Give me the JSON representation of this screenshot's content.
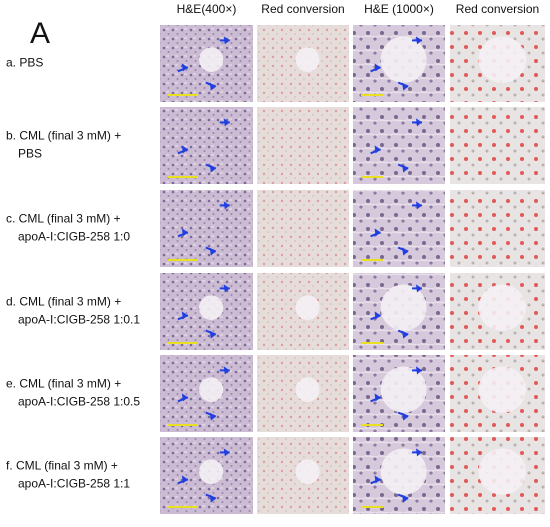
{
  "panel_label": "A",
  "columns": [
    "H&E(400×)",
    "Red conversion",
    "H&E (1000×)",
    "Red conversion"
  ],
  "rows": [
    {
      "lines": [
        "a. PBS"
      ]
    },
    {
      "lines": [
        "b. CML (final 3 mM) +",
        "PBS"
      ]
    },
    {
      "lines": [
        "c. CML (final 3 mM)  +",
        "apoA-I:CIGB-258  1:0"
      ]
    },
    {
      "lines": [
        "d. CML (final 3 mM)  +",
        "apoA-I:CIGB-258  1:0.1"
      ]
    },
    {
      "lines": [
        "e. CML (final 3 mM)  +",
        "apoA-I:CIGB-258  1:0.5"
      ]
    },
    {
      "lines": [
        "f. CML (final 3 mM) +",
        "apoA-I:CIGB-258  1:1"
      ]
    }
  ]
}
